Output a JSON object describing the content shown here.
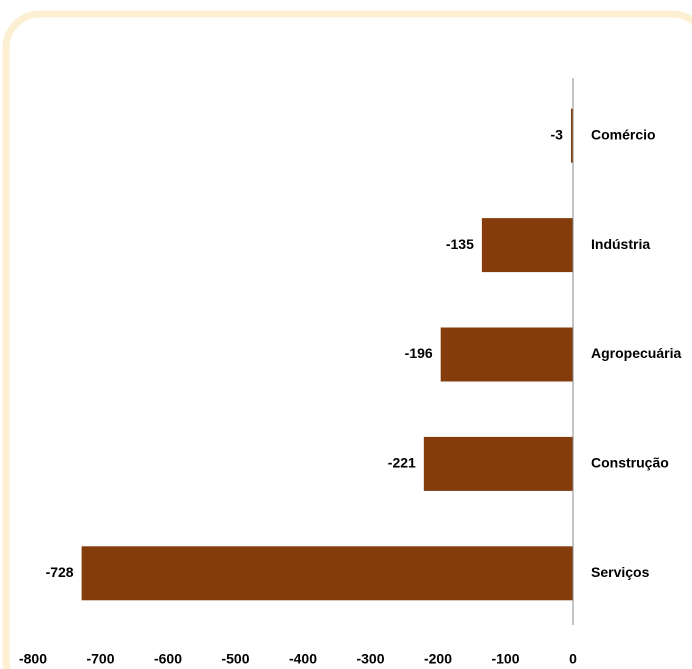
{
  "chart_data": {
    "type": "barh",
    "categories": [
      "Comércio",
      "Indústria",
      "Agropecuária",
      "Construção",
      "Serviços"
    ],
    "values": [
      -3,
      -135,
      -196,
      -221,
      -728
    ],
    "color": "#843c0c",
    "xlim": [
      -800,
      0
    ],
    "xticks": [
      -800,
      -700,
      -600,
      -500,
      -400,
      -300,
      -200,
      -100,
      0
    ]
  }
}
